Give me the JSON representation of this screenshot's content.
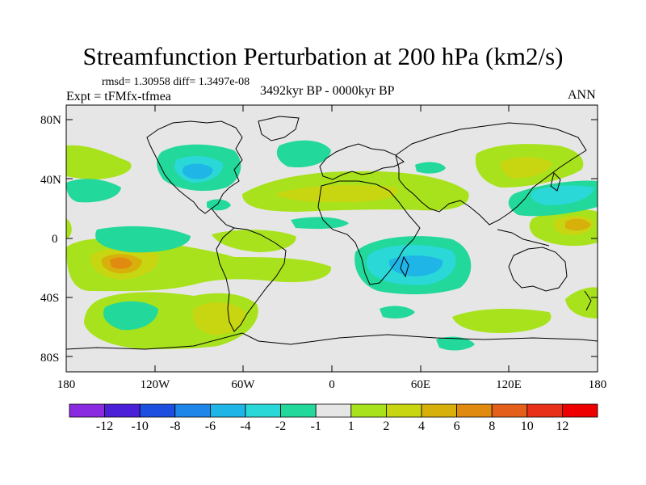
{
  "title": "Streamfunction Perturbation at 200 hPa (km2/s)",
  "stats": "rmsd= 1.30958 diff= 1.3497e-08",
  "experiment": "Expt = tFMfx-tfmea",
  "period": "3492kyr BP - 0000kyr BP",
  "season": "ANN",
  "y_ticks": [
    "80N",
    "40N",
    "0",
    "40S",
    "80S"
  ],
  "x_ticks": [
    "180",
    "120W",
    "60W",
    "0",
    "60E",
    "120E",
    "180"
  ],
  "colorbar": {
    "labels": [
      "-12",
      "-10",
      "-8",
      "-6",
      "-4",
      "-2",
      "-1",
      "1",
      "2",
      "4",
      "6",
      "8",
      "10",
      "12"
    ],
    "colors": [
      "#8a2be2",
      "#4b1fd8",
      "#1c4fe0",
      "#1e86e8",
      "#1fb5e6",
      "#2bd8d8",
      "#22d89a",
      "#e6e6e6",
      "#a8e21c",
      "#c8d612",
      "#d8b00c",
      "#e08a10",
      "#e4601a",
      "#e83018",
      "#ee0000"
    ]
  },
  "fields": {
    "bg": "#e6e6e6",
    "neg1": "#22d89a",
    "neg2": "#2bd8d8",
    "neg4": "#1fb5e6",
    "pos1": "#a8e21c",
    "pos2": "#c8d612",
    "pos4": "#d8b00c",
    "pos6": "#e08a10"
  }
}
